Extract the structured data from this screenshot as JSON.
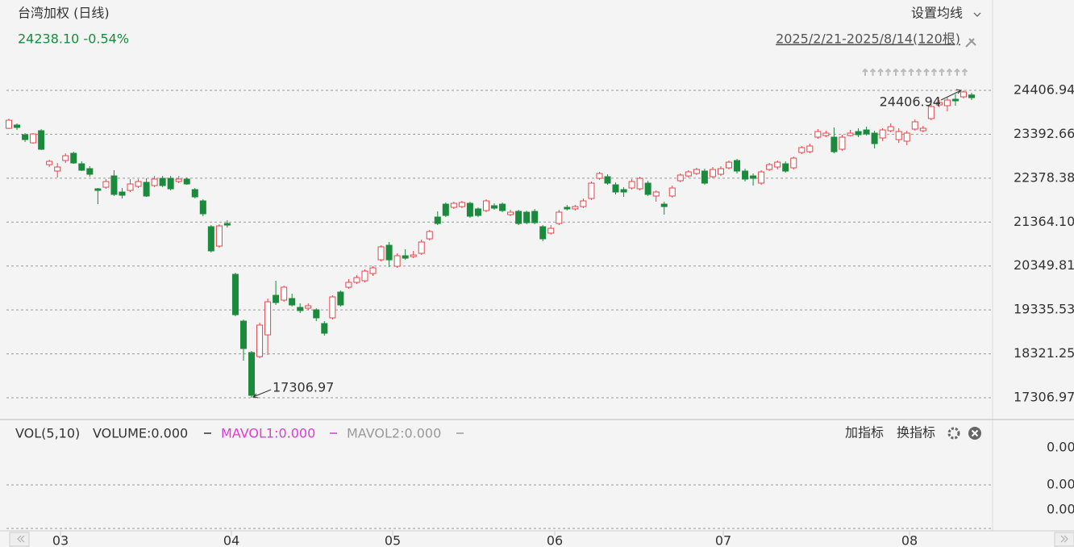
{
  "header": {
    "title": "台湾加权 (日线)",
    "quote": "24238.10 -0.54%",
    "ma_setting": "设置均线",
    "range": "2025/2/21-2025/8/14(120根)"
  },
  "chart_data": {
    "type": "candlestick",
    "ylim": [
      17306.97,
      24406.94
    ],
    "yticks": [
      17306.97,
      18321.25,
      19335.53,
      20349.81,
      {
        "value": 21364.1,
        "label": "21364.10"
      },
      22378.38,
      23392.66,
      24406.94
    ],
    "grid": true,
    "up_color": "#e0474c",
    "down_color": "#1b8a3c",
    "x_labels": [
      "03",
      "04",
      "05",
      "06",
      "07",
      "08"
    ],
    "open": [
      23530,
      23606,
      23382,
      23195,
      23475,
      22692,
      22543,
      22786,
      22953,
      22711,
      22599,
      22133,
      22170,
      22431,
      22059,
      22096,
      22189,
      22282,
      22208,
      22375,
      22375,
      22301,
      22357,
      22115,
      21854,
      21258,
      20810,
      21332,
      20158,
      19077,
      18351,
      18257,
      18760,
      19673,
      19562,
      19599,
      19394,
      19376,
      19338,
      19021,
      19152,
      19748,
      19860,
      19972,
      20009,
      20176,
      20493,
      20829,
      20344,
      20587,
      20568,
      20643,
      20978,
      21481,
      21779,
      21705,
      21723,
      21798,
      21668,
      21630,
      21742,
      21779,
      21537,
      21612,
      21593,
      21612,
      21258,
      21109,
      21332,
      21705,
      21668,
      21723,
      21910,
      22375,
      22413,
      22226,
      22115,
      22152,
      22133,
      22264,
      21966,
      21779,
      21966,
      22320,
      22431,
      22487,
      22543,
      22413,
      22469,
      22618,
      22786,
      22543,
      22431,
      22264,
      22580,
      22636,
      22711,
      22618,
      22972,
      22990,
      23326,
      23363,
      23326,
      23047,
      23363,
      23456,
      23493,
      23419,
      23307,
      23475,
      23270,
      23233,
      23512,
      23475,
      23755,
      24071,
      24053,
      24202,
      24258,
      24300
    ],
    "high": [
      23755,
      23643,
      23419,
      23419,
      23512,
      22804,
      22730,
      22953,
      22990,
      22767,
      22655,
      22152,
      22357,
      22562,
      22152,
      22357,
      22357,
      22375,
      22431,
      22431,
      22431,
      22431,
      22394,
      22152,
      21891,
      21295,
      21314,
      21407,
      20195,
      19114,
      18388,
      19040,
      19599,
      20009,
      19897,
      19711,
      19487,
      19487,
      19376,
      19077,
      19673,
      19785,
      20046,
      20139,
      20270,
      20344,
      20829,
      20904,
      20643,
      20736,
      20699,
      20960,
      21183,
      21612,
      21817,
      21835,
      21854,
      21835,
      21705,
      21891,
      21798,
      21817,
      21649,
      21649,
      21630,
      21668,
      21295,
      21295,
      21649,
      21761,
      21761,
      21910,
      22301,
      22524,
      22469,
      22282,
      22170,
      22357,
      22413,
      22320,
      22096,
      21835,
      22208,
      22487,
      22562,
      22618,
      22599,
      22636,
      22655,
      22786,
      22823,
      22599,
      22487,
      22562,
      22730,
      22786,
      22767,
      22878,
      23121,
      23177,
      23512,
      23475,
      23550,
      23382,
      23493,
      23531,
      23568,
      23475,
      23531,
      23643,
      23531,
      23475,
      23736,
      23587,
      24090,
      24183,
      24239,
      24314,
      24406.94,
      24351
    ],
    "low": [
      23512,
      23493,
      23214,
      23177,
      23028,
      22636,
      22394,
      22730,
      22711,
      22543,
      22413,
      21779,
      22133,
      21966,
      21910,
      22059,
      22152,
      21947,
      22170,
      22170,
      22096,
      22264,
      22226,
      21910,
      21500,
      20661,
      20773,
      21239,
      19189,
      18164,
      17306.97,
      18220,
      18295,
      19450,
      19524,
      19413,
      19264,
      19338,
      19077,
      18742,
      19114,
      19413,
      19823,
      19935,
      19972,
      20121,
      20456,
      20325,
      20307,
      20493,
      20531,
      20605,
      20941,
      21295,
      21481,
      21668,
      21686,
      21462,
      21481,
      21593,
      21649,
      21593,
      21500,
      21295,
      21314,
      21314,
      20922,
      21072,
      21295,
      21630,
      21630,
      21686,
      21872,
      22338,
      22226,
      22003,
      21947,
      22115,
      22096,
      21966,
      21835,
      21537,
      21928,
      22282,
      22394,
      22450,
      22226,
      22375,
      22431,
      22580,
      22487,
      22301,
      22208,
      22226,
      22543,
      22580,
      22506,
      22580,
      22934,
      22953,
      23289,
      23326,
      22953,
      23009,
      23345,
      23326,
      23363,
      23065,
      23233,
      23438,
      23195,
      23140,
      23475,
      23438,
      23717,
      24015,
      23922,
      24053,
      24220,
      24183
    ],
    "close": [
      23717,
      23550,
      23270,
      23400,
      23047,
      22767,
      22636,
      22897,
      22730,
      22562,
      22469,
      22096,
      22301,
      22003,
      21984,
      22245,
      22301,
      21966,
      22357,
      22208,
      22133,
      22357,
      22245,
      21947,
      21556,
      20699,
      21276,
      21295,
      19226,
      18444,
      17363,
      18984,
      19524,
      19506,
      19860,
      19450,
      19320,
      19431,
      19152,
      18798,
      19636,
      19450,
      19972,
      20083,
      20232,
      20307,
      20792,
      20493,
      20587,
      20531,
      20605,
      20904,
      21146,
      21332,
      21518,
      21798,
      21817,
      21500,
      21518,
      21854,
      21686,
      21630,
      21593,
      21332,
      21351,
      21351,
      20978,
      21220,
      21593,
      21668,
      21723,
      21854,
      22264,
      22487,
      22264,
      22059,
      22059,
      22301,
      22375,
      22003,
      22059,
      21723,
      22152,
      22450,
      22524,
      22580,
      22264,
      22580,
      22599,
      22748,
      22543,
      22357,
      22375,
      22524,
      22692,
      22748,
      22543,
      22841,
      23084,
      23121,
      23456,
      23419,
      22990,
      23326,
      23419,
      23382,
      23400,
      23177,
      23493,
      23568,
      23456,
      23419,
      23680,
      23531,
      24034,
      24127,
      24183,
      24165,
      24370,
      24238.1
    ]
  },
  "volume_panel": {
    "name": "VOL(5,10)",
    "volume": "VOLUME:0.000",
    "mavol1": "MAVOL1:0.000",
    "mavol2": "MAVOL2:0.000",
    "add": "加指标",
    "switch": "换指标",
    "tick_labels": [
      "0.00",
      "0.00",
      "0.00"
    ]
  }
}
